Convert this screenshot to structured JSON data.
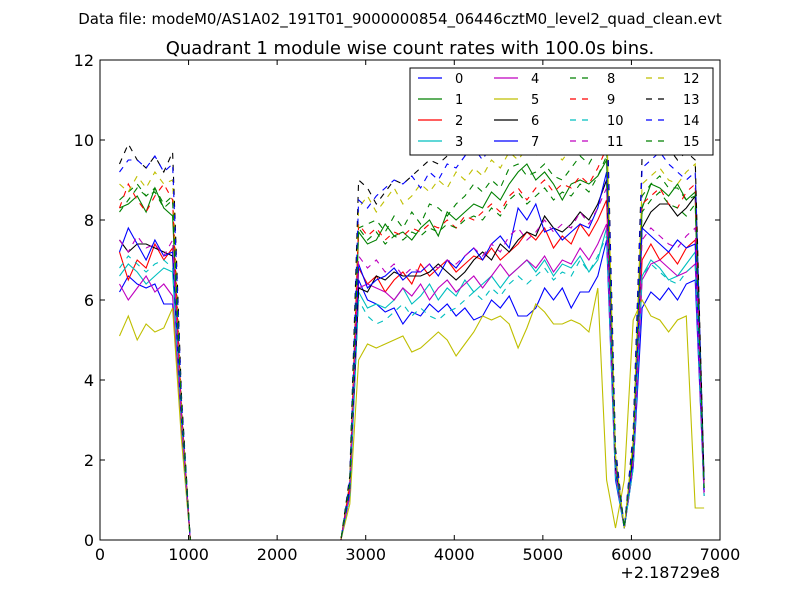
{
  "figure": {
    "suptitle": "Data file: modeM0/AS1A02_191T01_9000000854_06446cztM0_level2_quad_clean.evt"
  },
  "chart_data": {
    "type": "line",
    "title": "Quadrant 1 module wise count rates with 100.0s bins.",
    "xlabel": "",
    "ylabel": "",
    "x_offset_label": "+2.18729e8",
    "xlim": [
      0,
      7000
    ],
    "ylim": [
      0,
      12
    ],
    "xticks": [
      0,
      1000,
      2000,
      3000,
      4000,
      5000,
      6000,
      7000
    ],
    "xtick_labels": [
      "0",
      "1000",
      "2000",
      "3000",
      "4000",
      "5000",
      "6000",
      "7000"
    ],
    "yticks": [
      0,
      2,
      4,
      6,
      8,
      10,
      12
    ],
    "ytick_labels": [
      "0",
      "2",
      "4",
      "6",
      "8",
      "10",
      "12"
    ],
    "grid": false,
    "legend_placement": "top-right",
    "legend_columns": 4,
    "x": [
      220,
      320,
      420,
      520,
      620,
      720,
      820,
      920,
      1020,
      1120,
      2720,
      2820,
      2920,
      3020,
      3120,
      3220,
      3320,
      3420,
      3520,
      3620,
      3720,
      3820,
      3920,
      4020,
      4120,
      4220,
      4320,
      4420,
      4520,
      4620,
      4720,
      4820,
      4920,
      5020,
      5120,
      5220,
      5320,
      5420,
      5520,
      5620,
      5720,
      5820,
      5920,
      6020,
      6120,
      6220,
      6320,
      6420,
      6520,
      6620,
      6720,
      6820
    ],
    "series": [
      {
        "name": "0",
        "color": "#0000ff",
        "dash": "solid",
        "values": [
          6.2,
          6.6,
          6.4,
          6.3,
          6.4,
          5.9,
          5.9,
          3.0,
          0,
          0,
          0,
          1.2,
          6.5,
          6.0,
          5.9,
          5.7,
          5.8,
          5.4,
          5.7,
          5.6,
          5.9,
          5.7,
          5.9,
          5.6,
          5.8,
          5.5,
          5.6,
          6.0,
          5.8,
          6.1,
          5.6,
          5.6,
          5.8,
          6.3,
          6.0,
          6.3,
          5.8,
          6.2,
          6.2,
          6.6,
          7.5,
          1.5,
          0.3,
          1.8,
          5.8,
          6.2,
          6.0,
          6.3,
          6.0,
          6.4,
          6.5,
          1.2
        ]
      },
      {
        "name": "1",
        "color": "#008000",
        "dash": "solid",
        "values": [
          8.3,
          8.4,
          8.6,
          8.2,
          8.8,
          8.3,
          8.1,
          3.2,
          0,
          0,
          0,
          1.4,
          7.7,
          7.4,
          7.5,
          7.9,
          7.6,
          7.7,
          7.5,
          7.8,
          8.0,
          7.6,
          8.2,
          8.0,
          8.2,
          8.4,
          8.3,
          8.7,
          8.5,
          8.9,
          9.2,
          9.4,
          9.0,
          9.2,
          8.9,
          8.5,
          8.9,
          9.0,
          8.9,
          9.1,
          9.5,
          2.0,
          0.3,
          2.3,
          8.3,
          8.9,
          8.8,
          8.6,
          8.9,
          8.5,
          8.7,
          1.3
        ]
      },
      {
        "name": "2",
        "color": "#ff0000",
        "dash": "solid",
        "values": [
          7.2,
          6.5,
          7.0,
          6.8,
          7.4,
          7.0,
          7.3,
          2.9,
          0,
          0,
          0,
          1.2,
          6.8,
          6.4,
          6.6,
          6.2,
          6.5,
          6.7,
          6.4,
          6.9,
          6.6,
          6.8,
          7.0,
          6.7,
          6.9,
          7.1,
          7.0,
          7.3,
          7.0,
          7.2,
          7.4,
          7.7,
          7.5,
          7.8,
          7.3,
          7.6,
          7.4,
          7.9,
          7.6,
          8.0,
          8.5,
          1.8,
          0.3,
          2.0,
          7.0,
          7.4,
          7.0,
          7.2,
          6.9,
          7.3,
          7.5,
          1.2
        ]
      },
      {
        "name": "3",
        "color": "#00bfbf",
        "dash": "solid",
        "values": [
          6.6,
          6.9,
          6.7,
          6.4,
          6.6,
          6.8,
          6.7,
          2.9,
          0,
          0,
          0,
          1.1,
          6.2,
          5.8,
          5.9,
          5.8,
          6.0,
          6.3,
          5.9,
          6.1,
          6.4,
          6.0,
          6.3,
          6.1,
          6.5,
          6.2,
          6.4,
          6.6,
          6.3,
          6.6,
          6.8,
          7.0,
          6.7,
          7.0,
          6.6,
          6.9,
          6.8,
          7.1,
          6.7,
          7.0,
          7.8,
          1.6,
          0.3,
          1.8,
          6.6,
          7.0,
          6.8,
          6.5,
          6.6,
          6.9,
          7.2,
          1.1
        ]
      },
      {
        "name": "4",
        "color": "#bf00bf",
        "dash": "solid",
        "values": [
          6.4,
          6.0,
          6.3,
          6.6,
          6.2,
          6.4,
          6.1,
          2.7,
          0,
          0,
          0,
          1.1,
          6.3,
          6.4,
          6.3,
          6.2,
          6.0,
          6.3,
          6.1,
          6.4,
          6.0,
          6.3,
          6.5,
          6.2,
          6.4,
          6.6,
          6.3,
          6.6,
          6.9,
          6.6,
          6.8,
          7.0,
          6.8,
          7.1,
          6.7,
          7.0,
          6.9,
          7.3,
          7.0,
          7.4,
          7.9,
          1.7,
          0.3,
          1.9,
          6.5,
          6.9,
          7.0,
          6.8,
          6.6,
          6.7,
          6.9,
          1.1
        ]
      },
      {
        "name": "5",
        "color": "#bfbf00",
        "dash": "solid",
        "values": [
          5.1,
          5.6,
          5.0,
          5.4,
          5.2,
          5.3,
          5.8,
          2.5,
          0,
          0,
          0,
          0.9,
          4.5,
          4.9,
          4.8,
          4.9,
          5.0,
          5.1,
          4.7,
          4.8,
          5.0,
          5.2,
          5.0,
          4.6,
          4.9,
          5.2,
          5.6,
          5.5,
          5.6,
          5.4,
          4.8,
          5.3,
          5.9,
          5.7,
          5.4,
          5.4,
          5.5,
          5.4,
          5.2,
          6.3,
          1.5,
          0.3,
          1.5,
          5.5,
          6.0,
          5.6,
          5.5,
          5.2,
          5.5,
          5.6,
          0.8,
          0.8
        ]
      },
      {
        "name": "6",
        "color": "#000000",
        "dash": "solid",
        "values": [
          7.5,
          7.2,
          7.4,
          7.4,
          7.3,
          7.2,
          7.1,
          3.0,
          0,
          0,
          0,
          1.3,
          6.3,
          6.2,
          6.6,
          6.5,
          6.7,
          6.6,
          6.6,
          6.6,
          6.7,
          6.9,
          6.7,
          6.5,
          6.7,
          7.0,
          7.2,
          7.0,
          7.4,
          7.2,
          7.5,
          7.7,
          7.6,
          8.1,
          7.8,
          7.7,
          7.9,
          8.2,
          8.0,
          8.4,
          9.0,
          1.8,
          0.3,
          2.1,
          7.8,
          8.2,
          8.4,
          8.4,
          8.1,
          8.3,
          8.6,
          1.3
        ]
      },
      {
        "name": "7",
        "color": "#0000ff",
        "dash": "solid",
        "values": [
          7.2,
          7.8,
          7.4,
          7.0,
          7.5,
          7.1,
          7.2,
          3.0,
          0,
          0,
          0,
          1.2,
          6.9,
          6.3,
          6.5,
          6.6,
          6.8,
          6.5,
          6.7,
          6.7,
          6.9,
          6.6,
          7.0,
          6.8,
          7.1,
          7.3,
          7.0,
          7.4,
          7.6,
          7.3,
          8.3,
          8.0,
          8.4,
          7.7,
          7.8,
          7.5,
          7.7,
          7.9,
          7.8,
          8.3,
          9.2,
          1.9,
          0.3,
          2.0,
          7.8,
          7.6,
          7.4,
          7.2,
          7.5,
          7.3,
          7.4,
          1.2
        ]
      },
      {
        "name": "8",
        "color": "#008000",
        "dash": "dashed",
        "values": [
          8.5,
          8.7,
          8.9,
          8.6,
          8.8,
          8.4,
          8.6,
          3.3,
          0,
          0,
          0,
          1.4,
          7.8,
          7.9,
          8.0,
          7.7,
          8.1,
          7.8,
          8.2,
          7.9,
          8.4,
          8.3,
          8.1,
          8.4,
          8.6,
          8.9,
          8.7,
          9.0,
          8.8,
          9.3,
          9.4,
          9.1,
          9.2,
          9.4,
          9.1,
          9.0,
          9.3,
          9.6,
          9.4,
          9.8,
          9.9,
          2.1,
          0.3,
          2.4,
          8.6,
          8.9,
          9.1,
          8.8,
          8.8,
          8.5,
          8.6,
          1.4
        ]
      },
      {
        "name": "9",
        "color": "#ff0000",
        "dash": "dashed",
        "values": [
          8.3,
          8.9,
          8.5,
          8.2,
          8.6,
          8.9,
          8.5,
          3.2,
          0,
          0,
          0,
          1.4,
          7.9,
          7.6,
          7.8,
          7.5,
          7.7,
          7.6,
          7.8,
          7.7,
          7.9,
          7.8,
          8.0,
          7.8,
          8.1,
          8.0,
          8.2,
          8.4,
          8.2,
          8.6,
          8.8,
          8.5,
          8.8,
          9.0,
          8.7,
          8.9,
          8.8,
          9.1,
          8.9,
          9.3,
          9.8,
          2.0,
          0.3,
          2.3,
          8.4,
          8.6,
          8.8,
          8.4,
          8.3,
          8.7,
          8.9,
          1.3
        ]
      },
      {
        "name": "10",
        "color": "#00bfbf",
        "dash": "dashed",
        "values": [
          6.8,
          7.1,
          6.9,
          6.7,
          6.9,
          7.0,
          6.8,
          2.9,
          0,
          0,
          0,
          1.1,
          6.0,
          5.6,
          5.4,
          5.5,
          5.7,
          5.9,
          5.6,
          5.8,
          5.6,
          5.5,
          5.7,
          5.8,
          6.0,
          6.2,
          6.0,
          6.3,
          6.1,
          6.4,
          6.6,
          6.4,
          6.6,
          6.8,
          6.5,
          6.7,
          6.6,
          7.0,
          6.7,
          7.1,
          7.6,
          1.6,
          0.3,
          1.8,
          6.6,
          6.9,
          6.7,
          6.5,
          6.4,
          6.7,
          6.9,
          1.1
        ]
      },
      {
        "name": "11",
        "color": "#bf00bf",
        "dash": "dashed",
        "values": [
          7.5,
          7.2,
          7.6,
          7.3,
          7.4,
          7.1,
          7.5,
          3.0,
          0,
          0,
          0,
          1.2,
          7.1,
          6.8,
          7.0,
          6.7,
          6.9,
          6.6,
          6.8,
          6.7,
          6.9,
          6.8,
          7.0,
          6.9,
          7.1,
          7.3,
          7.1,
          7.4,
          7.2,
          7.6,
          7.8,
          7.5,
          7.7,
          8.0,
          7.7,
          7.9,
          7.8,
          8.2,
          7.9,
          8.3,
          8.8,
          1.8,
          0.3,
          2.0,
          7.5,
          7.8,
          7.6,
          7.4,
          7.3,
          7.6,
          7.8,
          1.2
        ]
      },
      {
        "name": "12",
        "color": "#bfbf00",
        "dash": "dashed",
        "values": [
          8.9,
          8.7,
          9.1,
          8.8,
          9.2,
          8.9,
          9.0,
          3.4,
          0,
          0,
          0,
          1.5,
          8.3,
          8.6,
          8.2,
          8.5,
          8.8,
          8.4,
          8.6,
          8.9,
          8.7,
          9.0,
          8.8,
          9.2,
          9.0,
          9.3,
          9.1,
          9.5,
          9.3,
          9.7,
          9.5,
          9.8,
          9.6,
          9.9,
          9.7,
          9.5,
          9.8,
          10.0,
          9.8,
          10.2,
          10.5,
          2.1,
          0.3,
          2.5,
          8.9,
          9.1,
          9.3,
          9.0,
          8.9,
          9.2,
          9.4,
          1.4
        ]
      },
      {
        "name": "13",
        "color": "#000000",
        "dash": "dashed",
        "values": [
          9.4,
          9.9,
          9.5,
          9.3,
          9.6,
          9.2,
          9.7,
          3.6,
          0,
          0,
          0,
          1.6,
          9.0,
          8.8,
          8.4,
          8.7,
          9.0,
          8.9,
          9.1,
          9.3,
          9.5,
          9.4,
          9.6,
          9.7,
          9.9,
          10.1,
          9.9,
          10.2,
          10.1,
          10.4,
          10.3,
          10.5,
          10.4,
          10.7,
          10.3,
          10.6,
          10.5,
          10.8,
          10.7,
          11.0,
          11.2,
          2.3,
          0.3,
          2.7,
          9.6,
          9.9,
          10.1,
          9.8,
          9.5,
          9.7,
          9.5,
          1.5
        ]
      },
      {
        "name": "14",
        "color": "#0000ff",
        "dash": "dashed",
        "values": [
          9.2,
          9.5,
          9.5,
          9.3,
          9.6,
          9.2,
          9.4,
          3.5,
          0,
          0,
          0,
          1.5,
          8.5,
          8.3,
          8.6,
          8.8,
          9.0,
          8.9,
          9.1,
          8.8,
          9.2,
          9.0,
          9.4,
          9.3,
          9.6,
          9.8,
          9.5,
          9.9,
          9.7,
          10.1,
          10.2,
          9.9,
          10.0,
          10.3,
          10.0,
          10.4,
          10.2,
          10.5,
          10.3,
          10.6,
          10.9,
          2.2,
          0.3,
          2.6,
          9.3,
          9.5,
          9.7,
          9.4,
          9.2,
          9.0,
          9.2,
          1.5
        ]
      },
      {
        "name": "15",
        "color": "#008000",
        "dash": "dashed",
        "values": [
          8.2,
          8.5,
          8.8,
          8.6,
          8.7,
          8.3,
          8.5,
          3.3,
          0,
          0,
          0,
          1.4,
          7.8,
          7.5,
          7.7,
          7.4,
          7.6,
          7.5,
          7.7,
          7.6,
          7.8,
          7.7,
          7.9,
          7.8,
          8.0,
          8.1,
          8.0,
          8.3,
          8.1,
          8.5,
          8.7,
          8.4,
          8.6,
          8.8,
          8.5,
          8.7,
          8.6,
          8.9,
          8.7,
          9.1,
          9.6,
          2.0,
          0.3,
          2.3,
          8.2,
          8.5,
          8.7,
          8.4,
          8.3,
          8.1,
          8.4,
          1.3
        ]
      }
    ]
  }
}
